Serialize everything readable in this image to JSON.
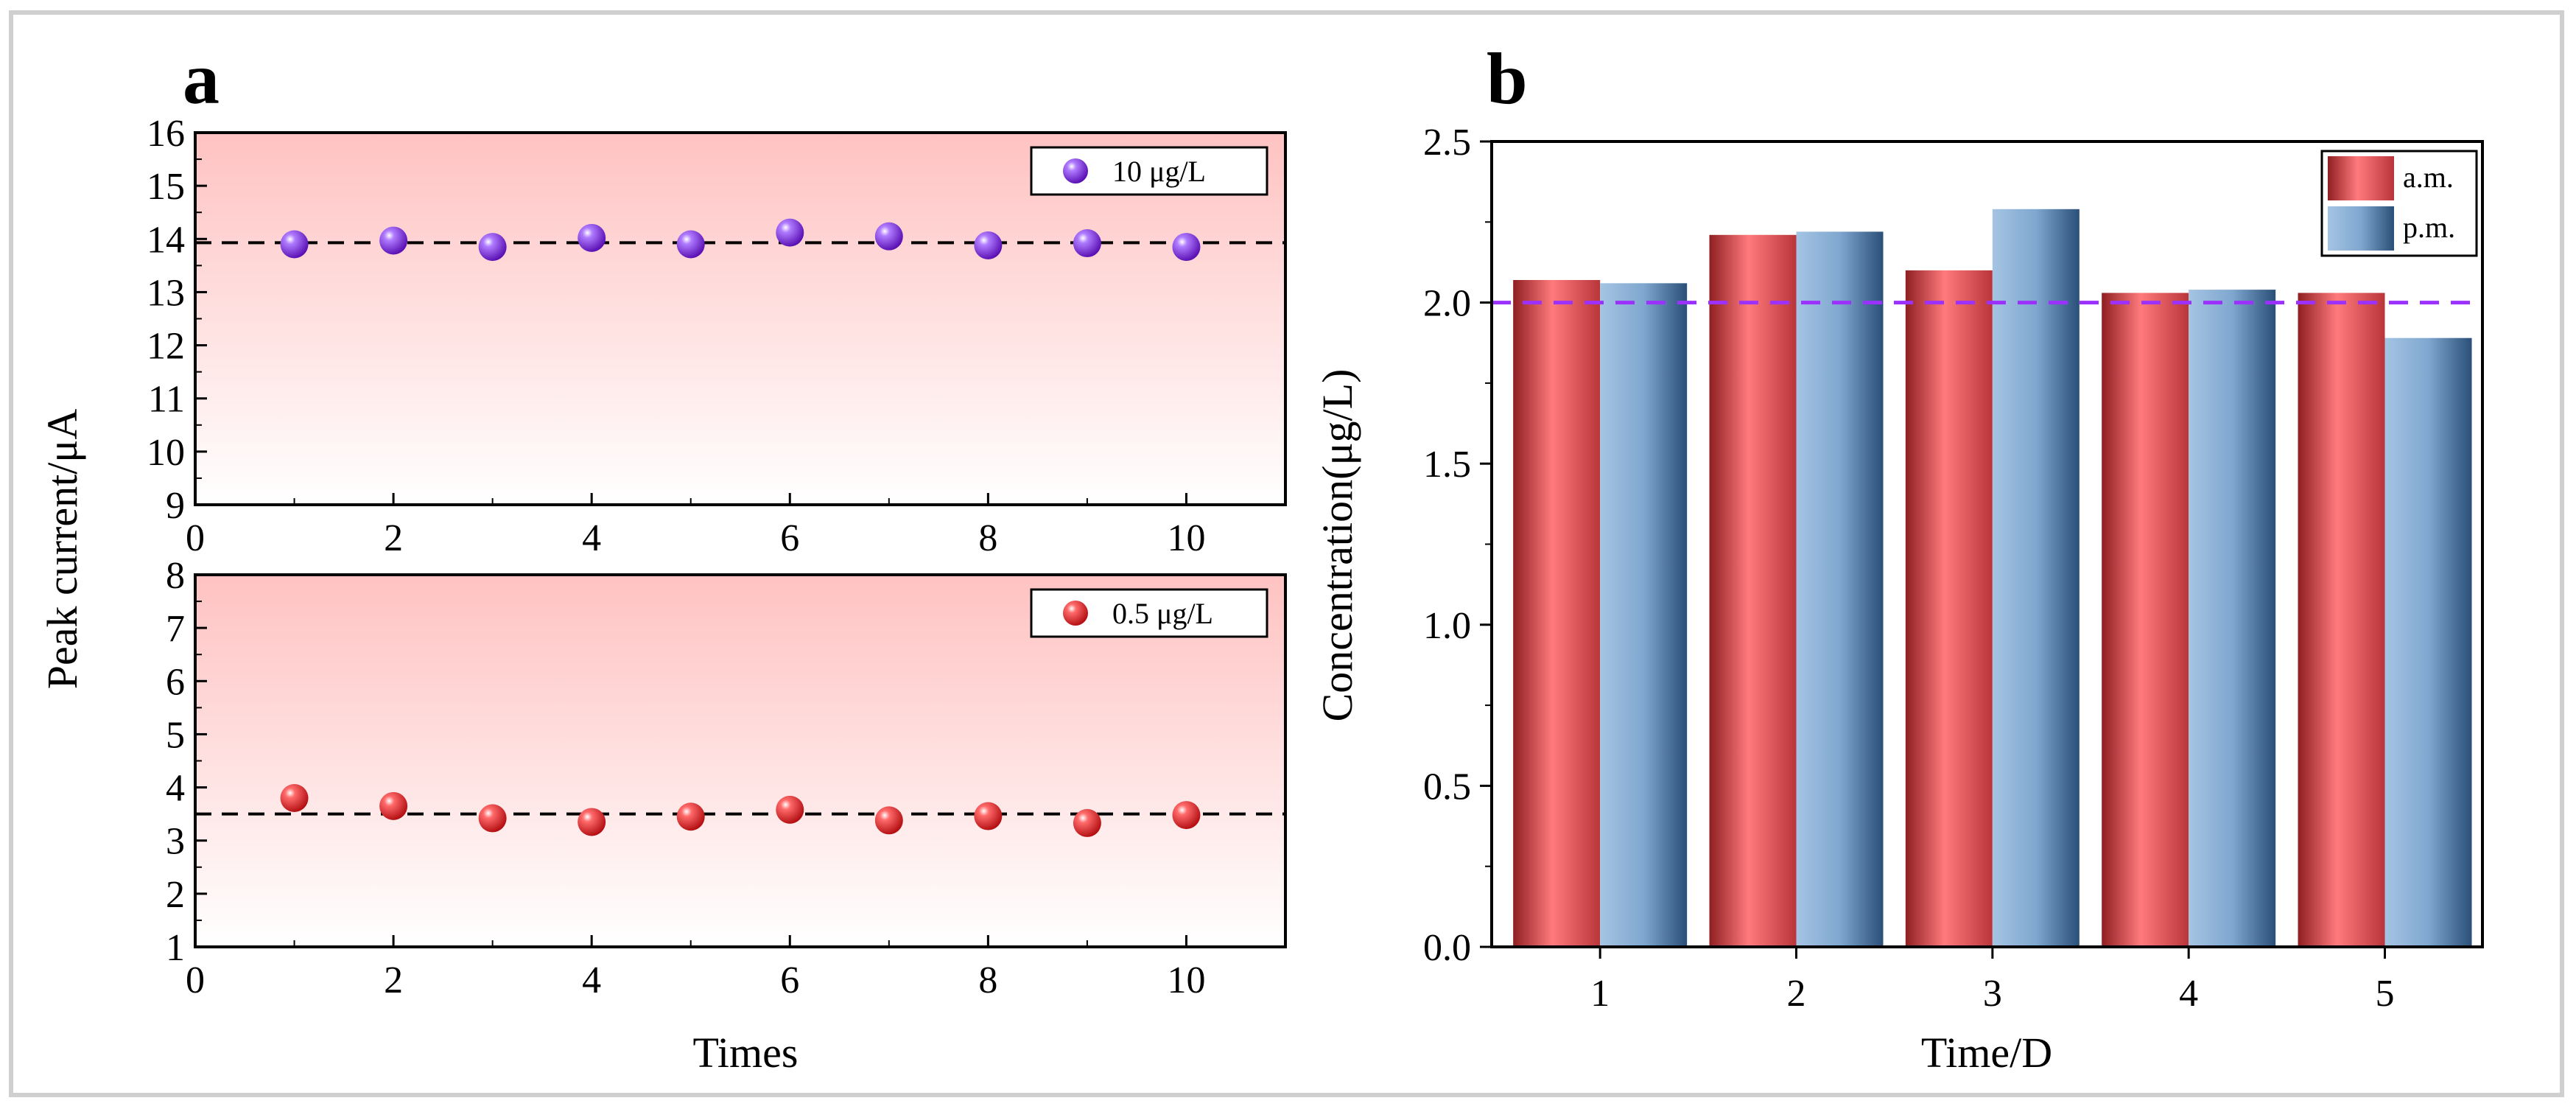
{
  "panel_a": {
    "label": "a",
    "ylabel": "Peak current/μA",
    "xlabel": "Times"
  },
  "panel_b": {
    "label": "b"
  },
  "chart_data": [
    {
      "type": "scatter",
      "id": "a_top",
      "xlim": [
        0,
        11
      ],
      "ylim": [
        9,
        16
      ],
      "xticks": [
        0,
        2,
        4,
        6,
        8,
        10
      ],
      "yticks": [
        9,
        10,
        11,
        12,
        13,
        14,
        15,
        16
      ],
      "x": [
        1,
        2,
        3,
        4,
        5,
        6,
        7,
        8,
        9,
        10
      ],
      "y": [
        13.9,
        13.97,
        13.85,
        14.02,
        13.9,
        14.12,
        14.05,
        13.88,
        13.92,
        13.85
      ],
      "reference_line": 13.93,
      "legend": "10 μg/L",
      "color": "#8a2be2"
    },
    {
      "type": "scatter",
      "id": "a_bottom",
      "xlim": [
        0,
        11
      ],
      "ylim": [
        1,
        8
      ],
      "xticks": [
        0,
        2,
        4,
        6,
        8,
        10
      ],
      "yticks": [
        1,
        2,
        3,
        4,
        5,
        6,
        7,
        8
      ],
      "x": [
        1,
        2,
        3,
        4,
        5,
        6,
        7,
        8,
        9,
        10
      ],
      "y": [
        3.8,
        3.65,
        3.42,
        3.35,
        3.45,
        3.58,
        3.38,
        3.46,
        3.33,
        3.48
      ],
      "reference_line": 3.5,
      "legend": "0.5 μg/L",
      "color": "#e8252a"
    },
    {
      "type": "bar",
      "id": "b",
      "xlabel": "Time/D",
      "ylabel": "Concentration(μg/L)",
      "categories": [
        "1",
        "2",
        "3",
        "4",
        "5"
      ],
      "ylim": [
        0.0,
        2.5
      ],
      "yticks": [
        "0.0",
        "0.5",
        "1.0",
        "1.5",
        "2.0",
        "2.5"
      ],
      "series": [
        {
          "name": "a.m.",
          "values": [
            2.07,
            2.21,
            2.1,
            2.03,
            2.03
          ],
          "color": "#e85a5e"
        },
        {
          "name": "p.m.",
          "values": [
            2.06,
            2.22,
            2.29,
            2.04,
            1.89
          ],
          "color": "#6f9cc9"
        }
      ],
      "reference_line": 2.0,
      "reference_color": "#9b30ff"
    }
  ]
}
